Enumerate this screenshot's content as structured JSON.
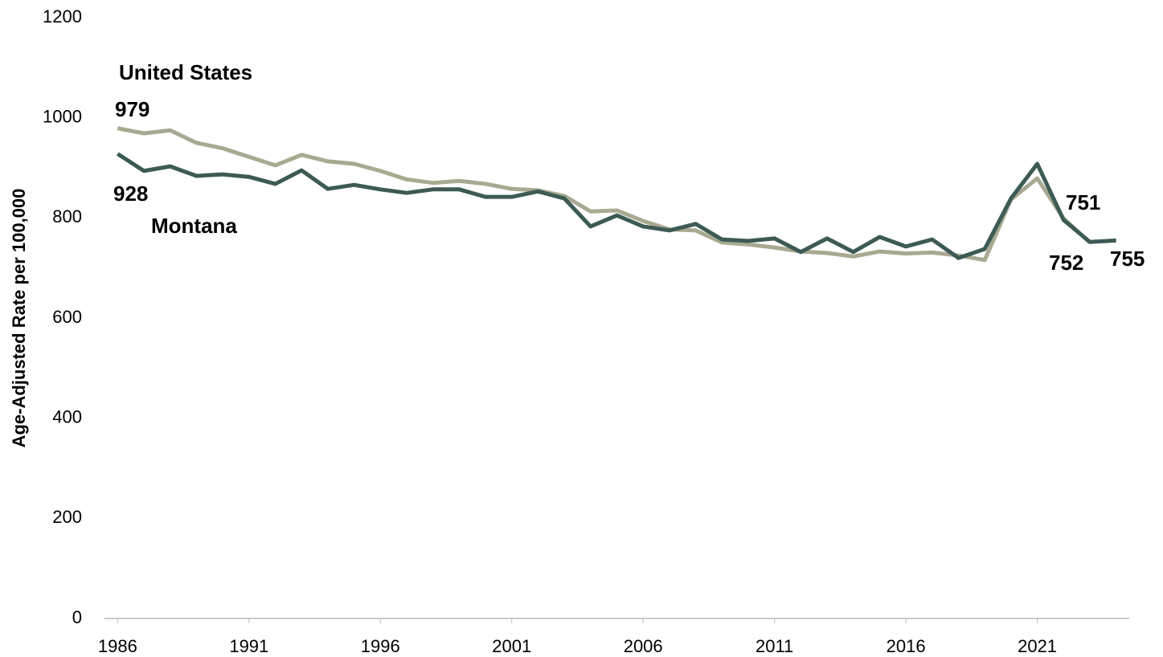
{
  "chart_data": {
    "type": "line",
    "y_label": "Age-Adjusted Rate per 100,000",
    "x": [
      1986,
      1987,
      1988,
      1989,
      1990,
      1991,
      1992,
      1993,
      1994,
      1995,
      1996,
      1997,
      1998,
      1999,
      2000,
      2001,
      2002,
      2003,
      2004,
      2005,
      2006,
      2007,
      2008,
      2009,
      2010,
      2011,
      2012,
      2013,
      2014,
      2015,
      2016,
      2017,
      2018,
      2019,
      2020,
      2021,
      2022,
      2023,
      2024
    ],
    "xlim": [
      1985.5,
      2024.5
    ],
    "xticks": [
      1986,
      1991,
      1996,
      2001,
      2006,
      2011,
      2016,
      2021
    ],
    "ylim": [
      0,
      1200
    ],
    "yticks": [
      0,
      200,
      400,
      600,
      800,
      1000,
      1200
    ],
    "grid": false,
    "series": [
      {
        "name": "United States",
        "color": "#a8a990",
        "values": [
          979,
          969,
          975,
          950,
          939,
          922,
          905,
          926,
          913,
          908,
          894,
          877,
          870,
          874,
          868,
          858,
          855,
          844,
          813,
          815,
          794,
          777,
          775,
          751,
          747,
          741,
          733,
          730,
          723,
          733,
          729,
          731,
          725,
          716,
          837,
          879,
          799,
          751,
          null
        ]
      },
      {
        "name": "Montana",
        "color": "#3d5a55",
        "values": [
          928,
          894,
          903,
          884,
          887,
          882,
          868,
          895,
          858,
          866,
          857,
          850,
          857,
          857,
          842,
          842,
          853,
          839,
          783,
          805,
          783,
          775,
          788,
          757,
          754,
          759,
          732,
          759,
          732,
          762,
          743,
          757,
          720,
          738,
          839,
          908,
          796,
          752,
          755
        ]
      }
    ],
    "annotations": [
      "979",
      "928",
      "751",
      "752",
      "755"
    ]
  }
}
